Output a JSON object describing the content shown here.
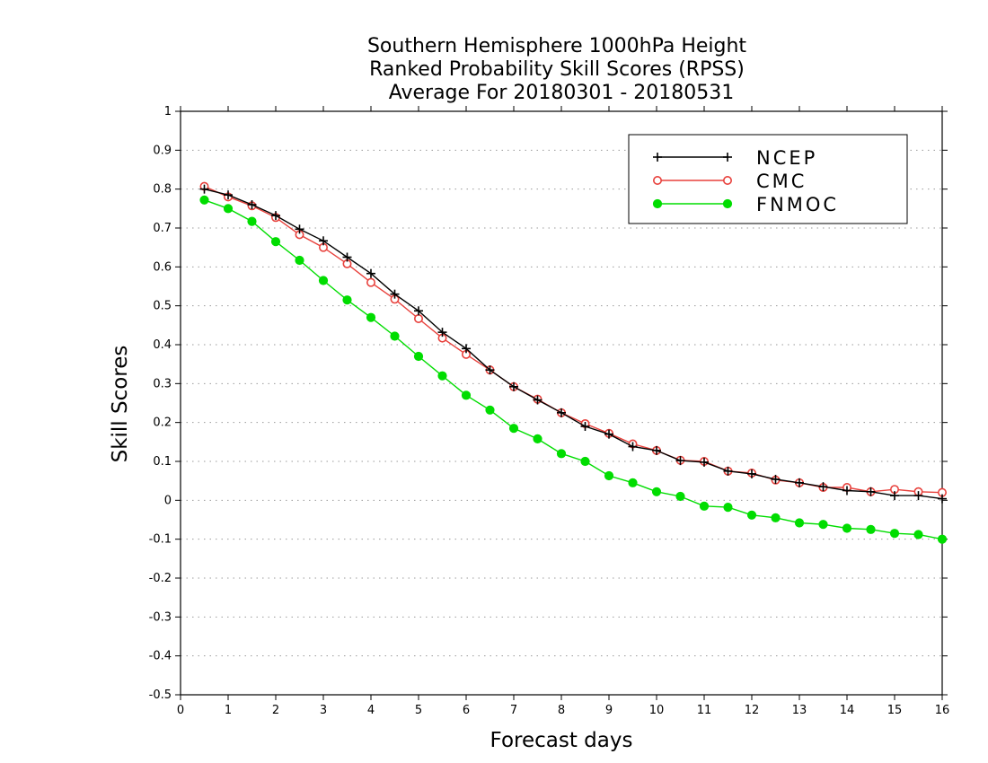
{
  "chart_data": {
    "type": "line",
    "title": [
      "Southern Hemisphere 1000hPa Height",
      "Ranked Probability Skill Scores (RPSS)",
      "Average For 20180301 - 20180531"
    ],
    "xlabel": "Forecast days",
    "ylabel": "Skill Scores",
    "xlim": [
      0,
      16
    ],
    "ylim": [
      -0.5,
      1
    ],
    "xticks": [
      0,
      1,
      2,
      3,
      4,
      5,
      6,
      7,
      8,
      9,
      10,
      11,
      12,
      13,
      14,
      15,
      16
    ],
    "yticks": [
      -0.5,
      -0.4,
      -0.3,
      -0.2,
      -0.1,
      0,
      0.1,
      0.2,
      0.3,
      0.4,
      0.5,
      0.6,
      0.7,
      0.8,
      0.9,
      1
    ],
    "ytick_labels": [
      "-0.5",
      "-0.4",
      "-0.3",
      "-0.2",
      "-0.1",
      "0",
      "0.1",
      "0.2",
      "0.3",
      "0.4",
      "0.5",
      "0.6",
      "0.7",
      "0.8",
      "0.9",
      "1"
    ],
    "grid": "horizontal dotted",
    "legend_position": "top-right",
    "x": [
      0.5,
      1,
      1.5,
      2,
      2.5,
      3,
      3.5,
      4,
      4.5,
      5,
      5.5,
      6,
      6.5,
      7,
      7.5,
      8,
      8.5,
      9,
      9.5,
      10,
      10.5,
      11,
      11.5,
      12,
      12.5,
      13,
      13.5,
      14,
      14.5,
      15,
      15.5,
      16
    ],
    "series": [
      {
        "name": "NCEP",
        "color": "#000000",
        "marker": "plus",
        "values": [
          0.8,
          0.785,
          0.76,
          0.732,
          0.697,
          0.667,
          0.625,
          0.583,
          0.53,
          0.487,
          0.432,
          0.39,
          0.335,
          0.292,
          0.258,
          0.225,
          0.19,
          0.17,
          0.138,
          0.128,
          0.102,
          0.098,
          0.075,
          0.068,
          0.054,
          0.045,
          0.035,
          0.025,
          0.022,
          0.012,
          0.012,
          0.004
        ]
      },
      {
        "name": "CMC",
        "color": "#e8413c",
        "marker": "open-circle",
        "values": [
          0.807,
          0.78,
          0.757,
          0.727,
          0.683,
          0.65,
          0.608,
          0.56,
          0.517,
          0.467,
          0.417,
          0.375,
          0.335,
          0.292,
          0.26,
          0.225,
          0.197,
          0.172,
          0.145,
          0.128,
          0.103,
          0.1,
          0.075,
          0.07,
          0.052,
          0.045,
          0.033,
          0.033,
          0.022,
          0.028,
          0.022,
          0.02
        ]
      },
      {
        "name": "FNMOC",
        "color": "#00dd00",
        "marker": "filled-circle",
        "values": [
          0.772,
          0.75,
          0.717,
          0.665,
          0.617,
          0.565,
          0.515,
          0.47,
          0.422,
          0.37,
          0.32,
          0.27,
          0.232,
          0.185,
          0.158,
          0.12,
          0.1,
          0.063,
          0.045,
          0.022,
          0.01,
          -0.015,
          -0.018,
          -0.038,
          -0.045,
          -0.058,
          -0.062,
          -0.072,
          -0.075,
          -0.085,
          -0.088,
          -0.1
        ]
      }
    ]
  }
}
